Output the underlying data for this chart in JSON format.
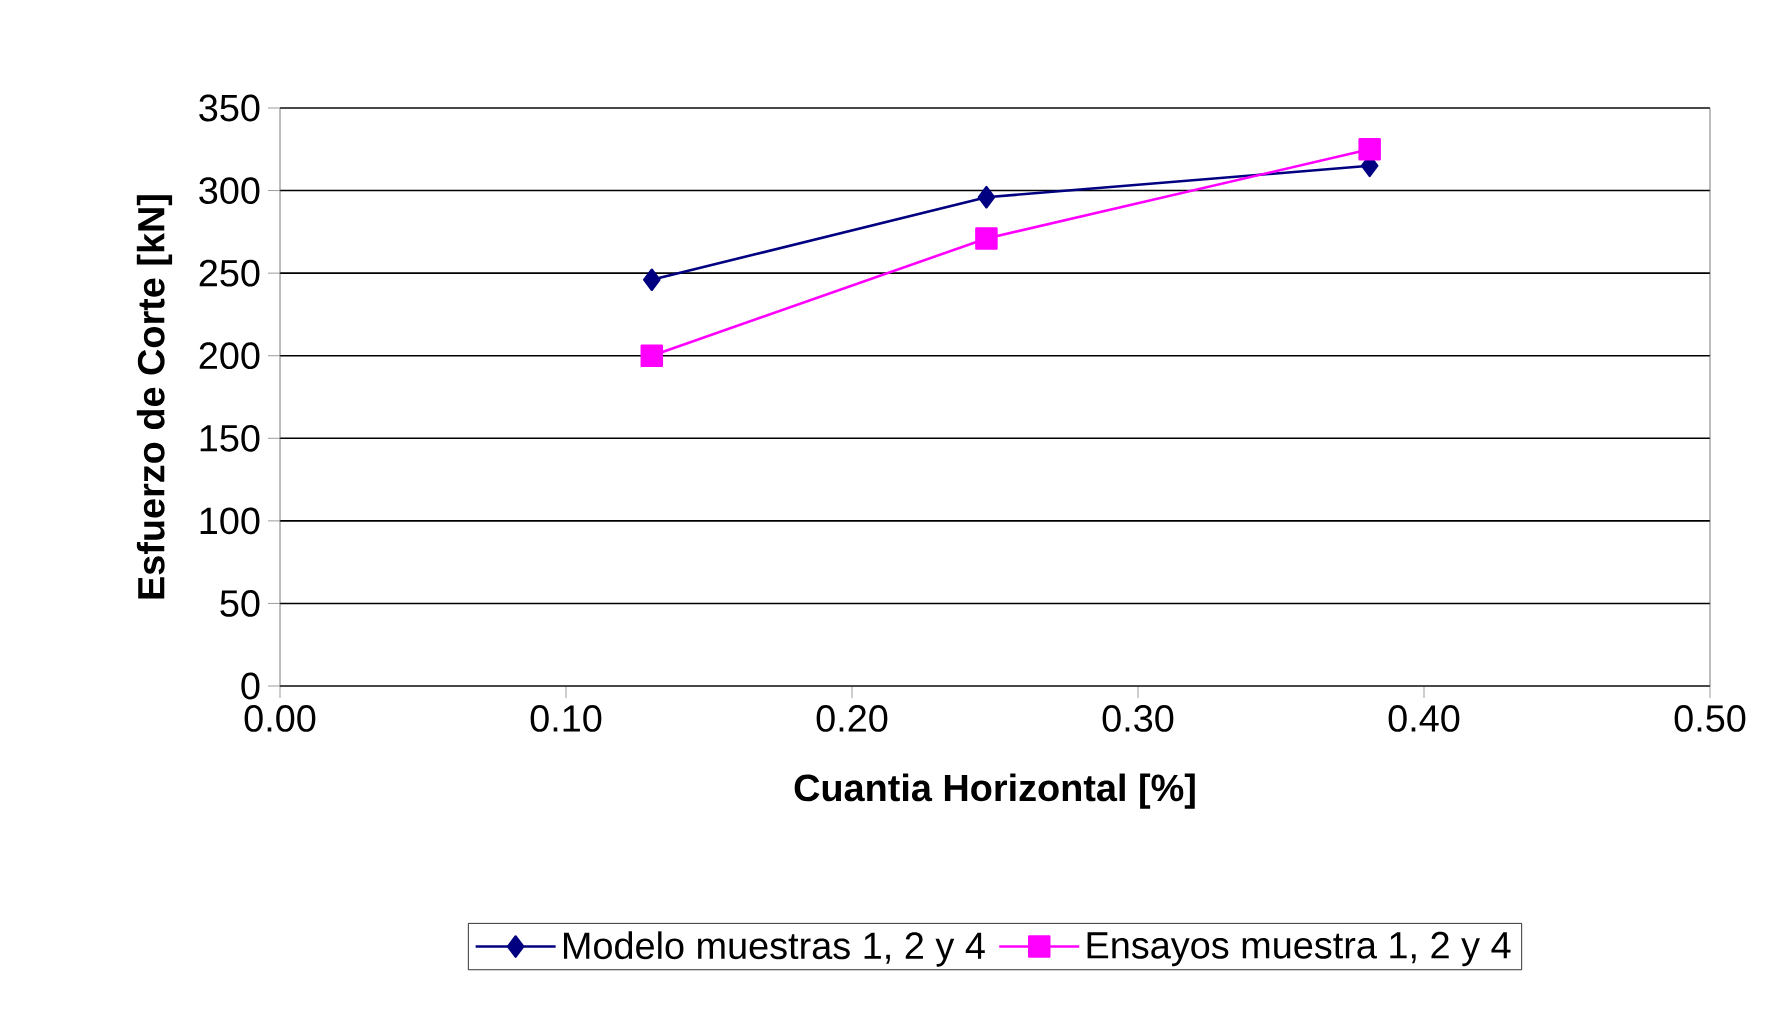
{
  "chart_data": {
    "type": "line",
    "xlabel": "Cuantia Horizontal [%]",
    "ylabel": "Esfuerzo de Corte [kN]",
    "series": [
      {
        "name": "Modelo muestras 1, 2 y 4",
        "color": "#000080",
        "marker": "diamond",
        "x": [
          0.13,
          0.247,
          0.381
        ],
        "values": [
          246,
          296,
          315
        ]
      },
      {
        "name": "Ensayos muestra 1, 2 y 4",
        "color": "#ff00ff",
        "marker": "square",
        "x": [
          0.13,
          0.247,
          0.381
        ],
        "values": [
          200,
          271,
          325
        ]
      }
    ],
    "xlim": [
      0,
      0.5
    ],
    "xticks": [
      {
        "value": 0,
        "label": "0.00"
      },
      {
        "value": 0.1,
        "label": "0.10"
      },
      {
        "value": 0.2,
        "label": "0.20"
      },
      {
        "value": 0.3,
        "label": "0.30"
      },
      {
        "value": 0.4,
        "label": "0.40"
      },
      {
        "value": 0.5,
        "label": "0.50"
      }
    ],
    "ylim": [
      0,
      350
    ],
    "yticks": [
      0,
      50,
      100,
      150,
      200,
      250,
      300,
      350
    ],
    "grid": "y",
    "legend": "bottom",
    "line_style": "solid"
  }
}
